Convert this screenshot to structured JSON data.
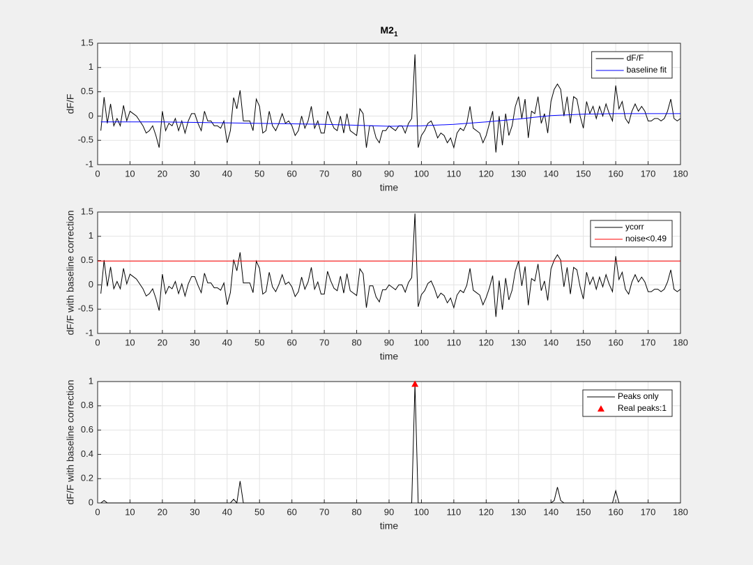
{
  "chart_data": [
    {
      "type": "line",
      "title": "M2",
      "title_subscript": "1",
      "xlabel": "time",
      "ylabel": "dF/F",
      "xlim": [
        0,
        180
      ],
      "ylim": [
        -1,
        1.5
      ],
      "xticks": [
        0,
        10,
        20,
        30,
        40,
        50,
        60,
        70,
        80,
        90,
        100,
        110,
        120,
        130,
        140,
        150,
        160,
        170,
        180
      ],
      "yticks": [
        -1,
        -0.5,
        0,
        0.5,
        1,
        1.5
      ],
      "grid": true,
      "legend": "northeast",
      "x": [
        1,
        2,
        3,
        4,
        5,
        6,
        7,
        8,
        9,
        10,
        11,
        12,
        13,
        14,
        15,
        16,
        17,
        18,
        19,
        20,
        21,
        22,
        23,
        24,
        25,
        26,
        27,
        28,
        29,
        30,
        31,
        32,
        33,
        34,
        35,
        36,
        37,
        38,
        39,
        40,
        41,
        42,
        43,
        44,
        45,
        46,
        47,
        48,
        49,
        50,
        51,
        52,
        53,
        54,
        55,
        56,
        57,
        58,
        59,
        60,
        61,
        62,
        63,
        64,
        65,
        66,
        67,
        68,
        69,
        70,
        71,
        72,
        73,
        74,
        75,
        76,
        77,
        78,
        79,
        80,
        81,
        82,
        83,
        84,
        85,
        86,
        87,
        88,
        89,
        90,
        91,
        92,
        93,
        94,
        95,
        96,
        97,
        98,
        99,
        100,
        101,
        102,
        103,
        104,
        105,
        106,
        107,
        108,
        109,
        110,
        111,
        112,
        113,
        114,
        115,
        116,
        117,
        118,
        119,
        120,
        121,
        122,
        123,
        124,
        125,
        126,
        127,
        128,
        129,
        130,
        131,
        132,
        133,
        134,
        135,
        136,
        137,
        138,
        139,
        140,
        141,
        142,
        143,
        144,
        145,
        146,
        147,
        148,
        149,
        150,
        151,
        152,
        153,
        154,
        155,
        156,
        157,
        158,
        159,
        160,
        161,
        162,
        163,
        164,
        165,
        166,
        167,
        168,
        169,
        170,
        171,
        172,
        173,
        174,
        175,
        176,
        177,
        178,
        179,
        180
      ],
      "series": [
        {
          "name": "dF/F",
          "color": "#000000",
          "values": [
            -0.3,
            0.39,
            -0.15,
            0.25,
            -0.2,
            -0.05,
            -0.2,
            0.22,
            -0.1,
            0.1,
            0.05,
            0,
            -0.1,
            -0.2,
            -0.35,
            -0.3,
            -0.2,
            -0.4,
            -0.65,
            0.1,
            -0.3,
            -0.15,
            -0.2,
            -0.05,
            -0.3,
            -0.1,
            -0.35,
            -0.1,
            0.05,
            0.05,
            -0.15,
            -0.3,
            0.1,
            -0.1,
            -0.1,
            -0.2,
            -0.2,
            -0.25,
            -0.1,
            -0.55,
            -0.3,
            0.38,
            0.15,
            0.53,
            -0.1,
            -0.1,
            -0.1,
            -0.3,
            0.35,
            0.2,
            -0.35,
            -0.3,
            0.1,
            -0.2,
            -0.3,
            -0.15,
            0.05,
            -0.15,
            -0.1,
            -0.2,
            -0.4,
            -0.3,
            0,
            -0.25,
            -0.1,
            0.2,
            -0.25,
            -0.1,
            -0.35,
            -0.35,
            0.1,
            -0.1,
            -0.25,
            -0.3,
            0,
            -0.35,
            0.05,
            -0.3,
            -0.35,
            -0.4,
            0.15,
            0.05,
            -0.65,
            -0.2,
            -0.2,
            -0.45,
            -0.55,
            -0.3,
            -0.3,
            -0.2,
            -0.25,
            -0.3,
            -0.2,
            -0.2,
            -0.35,
            -0.15,
            -0.05,
            1.27,
            -0.65,
            -0.4,
            -0.3,
            -0.15,
            -0.1,
            -0.25,
            -0.45,
            -0.35,
            -0.4,
            -0.55,
            -0.45,
            -0.65,
            -0.35,
            -0.25,
            -0.3,
            -0.15,
            0.2,
            -0.25,
            -0.3,
            -0.35,
            -0.55,
            -0.4,
            -0.15,
            0.1,
            -0.75,
            0,
            -0.6,
            0.05,
            -0.4,
            -0.2,
            0.2,
            0.4,
            -0.05,
            0.35,
            -0.45,
            0.1,
            0.05,
            0.4,
            -0.15,
            0.05,
            -0.35,
            0.3,
            0.55,
            0.66,
            0.55,
            0,
            0.4,
            -0.15,
            0.4,
            0.35,
            0,
            -0.25,
            0.3,
            0.05,
            0.2,
            -0.05,
            0.2,
            0,
            0.25,
            0.05,
            -0.1,
            0.63,
            0.15,
            0.3,
            -0.05,
            -0.15,
            0.1,
            0.25,
            0.1,
            0.2,
            0.1,
            -0.1,
            -0.1,
            -0.05,
            -0.05,
            -0.1,
            -0.05,
            0.1,
            0.35,
            -0.05,
            -0.1,
            -0.05
          ]
        },
        {
          "name": "baseline fit",
          "color": "#0000ff",
          "x": [
            1,
            10,
            20,
            30,
            40,
            50,
            60,
            70,
            80,
            90,
            100,
            110,
            120,
            130,
            140,
            150,
            160,
            170,
            180
          ],
          "values": [
            -0.12,
            -0.12,
            -0.12,
            -0.13,
            -0.14,
            -0.15,
            -0.16,
            -0.17,
            -0.19,
            -0.21,
            -0.2,
            -0.17,
            -0.12,
            -0.06,
            0.01,
            0.04,
            0.05,
            0.05,
            0.05
          ]
        }
      ]
    },
    {
      "type": "line",
      "xlabel": "time",
      "ylabel": "dF/F with baseline correction",
      "xlim": [
        0,
        180
      ],
      "ylim": [
        -1,
        1.5
      ],
      "xticks": [
        0,
        10,
        20,
        30,
        40,
        50,
        60,
        70,
        80,
        90,
        100,
        110,
        120,
        130,
        140,
        150,
        160,
        170,
        180
      ],
      "yticks": [
        -1,
        -0.5,
        0,
        0.5,
        1,
        1.5
      ],
      "grid": true,
      "legend": "northeast",
      "x": [
        1,
        2,
        3,
        4,
        5,
        6,
        7,
        8,
        9,
        10,
        11,
        12,
        13,
        14,
        15,
        16,
        17,
        18,
        19,
        20,
        21,
        22,
        23,
        24,
        25,
        26,
        27,
        28,
        29,
        30,
        31,
        32,
        33,
        34,
        35,
        36,
        37,
        38,
        39,
        40,
        41,
        42,
        43,
        44,
        45,
        46,
        47,
        48,
        49,
        50,
        51,
        52,
        53,
        54,
        55,
        56,
        57,
        58,
        59,
        60,
        61,
        62,
        63,
        64,
        65,
        66,
        67,
        68,
        69,
        70,
        71,
        72,
        73,
        74,
        75,
        76,
        77,
        78,
        79,
        80,
        81,
        82,
        83,
        84,
        85,
        86,
        87,
        88,
        89,
        90,
        91,
        92,
        93,
        94,
        95,
        96,
        97,
        98,
        99,
        100,
        101,
        102,
        103,
        104,
        105,
        106,
        107,
        108,
        109,
        110,
        111,
        112,
        113,
        114,
        115,
        116,
        117,
        118,
        119,
        120,
        121,
        122,
        123,
        124,
        125,
        126,
        127,
        128,
        129,
        130,
        131,
        132,
        133,
        134,
        135,
        136,
        137,
        138,
        139,
        140,
        141,
        142,
        143,
        144,
        145,
        146,
        147,
        148,
        149,
        150,
        151,
        152,
        153,
        154,
        155,
        156,
        157,
        158,
        159,
        160,
        161,
        162,
        163,
        164,
        165,
        166,
        167,
        168,
        169,
        170,
        171,
        172,
        173,
        174,
        175,
        176,
        177,
        178,
        179,
        180
      ],
      "series": [
        {
          "name": "ycorr",
          "color": "#000000",
          "values": [
            -0.18,
            0.51,
            -0.03,
            0.37,
            -0.08,
            0.07,
            -0.08,
            0.34,
            0.02,
            0.22,
            0.17,
            0.12,
            0.02,
            -0.08,
            -0.23,
            -0.18,
            -0.08,
            -0.28,
            -0.53,
            0.22,
            -0.18,
            -0.03,
            -0.08,
            0.07,
            -0.18,
            0.02,
            -0.23,
            0.02,
            0.17,
            0.17,
            -0.01,
            -0.16,
            0.24,
            0.04,
            0.04,
            -0.06,
            -0.06,
            -0.11,
            0.04,
            -0.41,
            -0.16,
            0.52,
            0.29,
            0.67,
            0.04,
            0.04,
            0.04,
            -0.16,
            0.49,
            0.34,
            -0.19,
            -0.14,
            0.26,
            -0.04,
            -0.14,
            0.01,
            0.21,
            0.01,
            0.06,
            -0.04,
            -0.24,
            -0.14,
            0.16,
            -0.09,
            0.06,
            0.36,
            -0.09,
            0.06,
            -0.19,
            -0.19,
            0.28,
            0.08,
            -0.07,
            -0.12,
            0.18,
            -0.17,
            0.23,
            -0.12,
            -0.17,
            -0.22,
            0.33,
            0.23,
            -0.47,
            -0.02,
            -0.02,
            -0.25,
            -0.35,
            -0.1,
            -0.1,
            0,
            -0.05,
            -0.1,
            0,
            0,
            -0.15,
            0.05,
            0.15,
            1.47,
            -0.45,
            -0.2,
            -0.12,
            0.03,
            0.08,
            -0.07,
            -0.27,
            -0.17,
            -0.22,
            -0.37,
            -0.27,
            -0.47,
            -0.21,
            -0.11,
            -0.16,
            -0.01,
            0.34,
            -0.11,
            -0.16,
            -0.21,
            -0.41,
            -0.26,
            -0.06,
            0.19,
            -0.66,
            0.09,
            -0.51,
            0.14,
            -0.31,
            -0.11,
            0.29,
            0.49,
            -0.02,
            0.38,
            -0.42,
            0.13,
            0.08,
            0.43,
            -0.12,
            0.08,
            -0.32,
            0.33,
            0.51,
            0.62,
            0.51,
            -0.04,
            0.36,
            -0.19,
            0.36,
            0.31,
            -0.04,
            -0.29,
            0.26,
            0.01,
            0.16,
            -0.09,
            0.16,
            -0.04,
            0.21,
            0.01,
            -0.14,
            0.59,
            0.11,
            0.26,
            -0.09,
            -0.19,
            0.06,
            0.21,
            0.06,
            0.16,
            0.06,
            -0.14,
            -0.14,
            -0.09,
            -0.09,
            -0.14,
            -0.09,
            0.06,
            0.31,
            -0.09,
            -0.14,
            -0.09
          ]
        },
        {
          "name": "noise<0.49",
          "color": "#ff0000",
          "x": [
            0,
            180
          ],
          "values": [
            0.49,
            0.49
          ]
        }
      ]
    },
    {
      "type": "line",
      "xlabel": "time",
      "ylabel": "dF/F with baseline correction",
      "xlim": [
        0,
        180
      ],
      "ylim": [
        0,
        1
      ],
      "xticks": [
        0,
        10,
        20,
        30,
        40,
        50,
        60,
        70,
        80,
        90,
        100,
        110,
        120,
        130,
        140,
        150,
        160,
        170,
        180
      ],
      "yticks": [
        0,
        0.2,
        0.4,
        0.6,
        0.8,
        1
      ],
      "grid": true,
      "legend": "northeast",
      "x": [
        1,
        2,
        3,
        4,
        5,
        6,
        7,
        8,
        9,
        10,
        11,
        12,
        13,
        14,
        15,
        16,
        17,
        18,
        19,
        20,
        21,
        22,
        23,
        24,
        25,
        26,
        27,
        28,
        29,
        30,
        31,
        32,
        33,
        34,
        35,
        36,
        37,
        38,
        39,
        40,
        41,
        42,
        43,
        44,
        45,
        46,
        47,
        48,
        49,
        50,
        51,
        52,
        53,
        54,
        55,
        56,
        57,
        58,
        59,
        60,
        61,
        62,
        63,
        64,
        65,
        66,
        67,
        68,
        69,
        70,
        71,
        72,
        73,
        74,
        75,
        76,
        77,
        78,
        79,
        80,
        81,
        82,
        83,
        84,
        85,
        86,
        87,
        88,
        89,
        90,
        91,
        92,
        93,
        94,
        95,
        96,
        97,
        98,
        99,
        100,
        101,
        102,
        103,
        104,
        105,
        106,
        107,
        108,
        109,
        110,
        111,
        112,
        113,
        114,
        115,
        116,
        117,
        118,
        119,
        120,
        121,
        122,
        123,
        124,
        125,
        126,
        127,
        128,
        129,
        130,
        131,
        132,
        133,
        134,
        135,
        136,
        137,
        138,
        139,
        140,
        141,
        142,
        143,
        144,
        145,
        146,
        147,
        148,
        149,
        150,
        151,
        152,
        153,
        154,
        155,
        156,
        157,
        158,
        159,
        160,
        161,
        162,
        163,
        164,
        165,
        166,
        167,
        168,
        169,
        170,
        171,
        172,
        173,
        174,
        175,
        176,
        177,
        178,
        179,
        180
      ],
      "series": [
        {
          "name": "Peaks only",
          "color": "#000000",
          "values": [
            0,
            0.02,
            0,
            0,
            0,
            0,
            0,
            0,
            0,
            0,
            0,
            0,
            0,
            0,
            0,
            0,
            0,
            0,
            0,
            0,
            0,
            0,
            0,
            0,
            0,
            0,
            0,
            0,
            0,
            0,
            0,
            0,
            0,
            0,
            0,
            0,
            0,
            0,
            0,
            0,
            0,
            0.03,
            0,
            0.18,
            0,
            0,
            0,
            0,
            0,
            0,
            0,
            0,
            0,
            0,
            0,
            0,
            0,
            0,
            0,
            0,
            0,
            0,
            0,
            0,
            0,
            0,
            0,
            0,
            0,
            0,
            0,
            0,
            0,
            0,
            0,
            0,
            0,
            0,
            0,
            0,
            0,
            0,
            0,
            0,
            0,
            0,
            0,
            0,
            0,
            0,
            0,
            0,
            0,
            0,
            0,
            0,
            0,
            0.98,
            0,
            0,
            0,
            0,
            0,
            0,
            0,
            0,
            0,
            0,
            0,
            0,
            0,
            0,
            0,
            0,
            0,
            0,
            0,
            0,
            0,
            0,
            0,
            0,
            0,
            0,
            0,
            0,
            0,
            0,
            0,
            0,
            0,
            0,
            0,
            0,
            0,
            0,
            0,
            0,
            0,
            0,
            0.02,
            0.13,
            0.02,
            0,
            0,
            0,
            0,
            0,
            0,
            0,
            0,
            0,
            0,
            0,
            0,
            0,
            0,
            0,
            0,
            0.1,
            0,
            0,
            0,
            0,
            0,
            0,
            0,
            0,
            0,
            0,
            0,
            0,
            0,
            0,
            0,
            0,
            0,
            0,
            0,
            0
          ]
        },
        {
          "name": "Real peaks:1",
          "type": "scatter",
          "marker": "triangle",
          "color": "#ff0000",
          "x": [
            98
          ],
          "values": [
            0.98
          ]
        }
      ]
    }
  ]
}
